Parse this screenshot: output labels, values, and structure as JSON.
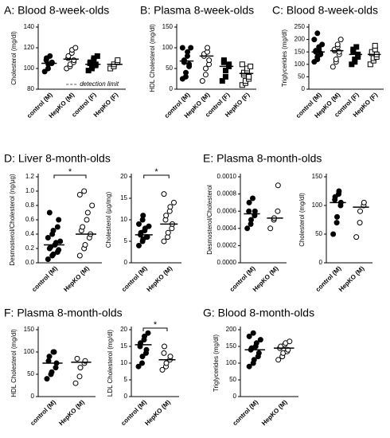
{
  "chart_data": [
    {
      "type": "strip",
      "title": "A: Blood 8-week-olds",
      "ylabel": "Cholesterol (mg/dl)",
      "annotation": "detection limit",
      "categories": [
        "control (M)",
        "HepKO (M)",
        "control (F)",
        "HepKO (F)"
      ],
      "markers": [
        "circle",
        "open-circle",
        "square",
        "open-square"
      ],
      "color": "#000000",
      "values": [
        [
          97,
          100,
          104,
          105,
          106,
          108,
          110,
          112
        ],
        [
          100,
          102,
          104,
          106,
          108,
          110,
          112,
          115,
          118,
          120
        ],
        [
          98,
          100,
          102,
          103,
          104,
          105,
          106,
          108,
          110,
          112
        ],
        [
          100,
          102,
          104,
          106,
          108
        ]
      ],
      "medians": [
        105,
        109,
        104,
        104
      ],
      "ylim": [
        80,
        140
      ],
      "yticks": [
        80,
        100,
        120,
        140
      ]
    },
    {
      "type": "strip",
      "title": "B: Plasma 8-week-olds",
      "ylabel": "HDL Cholesterol (mg/dl)",
      "categories": [
        "control (M)",
        "HepKO (M)",
        "control (F)",
        "HepKO (F)"
      ],
      "markers": [
        "circle",
        "open-circle",
        "square",
        "open-square"
      ],
      "color": "#000000",
      "values": [
        [
          25,
          30,
          40,
          55,
          60,
          65,
          70,
          80,
          90,
          100,
          100
        ],
        [
          20,
          35,
          50,
          60,
          70,
          80,
          85,
          90,
          100
        ],
        [
          20,
          30,
          45,
          55,
          60,
          65,
          70
        ],
        [
          10,
          15,
          20,
          25,
          30,
          35,
          40,
          45,
          50,
          55,
          60
        ]
      ],
      "medians": [
        68,
        80,
        55,
        38
      ],
      "ylim": [
        0,
        150
      ],
      "yticks": [
        0,
        50,
        100,
        150
      ]
    },
    {
      "type": "strip",
      "title": "C: Blood 8-week-olds",
      "ylabel": "Triglycerides (mg/dl)",
      "categories": [
        "control (M)",
        "HepKO (M)",
        "control (F)",
        "HepKO (F)"
      ],
      "markers": [
        "circle",
        "open-circle",
        "square",
        "open-square"
      ],
      "color": "#000000",
      "values": [
        [
          110,
          120,
          130,
          140,
          145,
          150,
          155,
          160,
          170,
          180,
          200,
          225
        ],
        [
          90,
          110,
          120,
          140,
          150,
          155,
          160,
          170,
          180,
          200
        ],
        [
          100,
          110,
          120,
          130,
          140,
          150,
          160,
          170
        ],
        [
          100,
          115,
          125,
          130,
          140,
          145,
          150,
          160,
          175
        ]
      ],
      "medians": [
        150,
        155,
        140,
        140
      ],
      "ylim": [
        0,
        250
      ],
      "yticks": [
        0,
        50,
        100,
        150,
        200,
        250
      ]
    },
    {
      "type": "strip",
      "title": "D: Liver 8-month-olds",
      "ylabel": "Desmosterol/Cholesterol (ng/µg)",
      "significance": "*",
      "categories": [
        "control (M)",
        "HepKO (M)"
      ],
      "markers": [
        "circle",
        "open-circle"
      ],
      "color": "#000000",
      "values": [
        [
          0.05,
          0.1,
          0.12,
          0.15,
          0.18,
          0.2,
          0.22,
          0.25,
          0.28,
          0.3,
          0.35,
          0.4,
          0.45,
          0.5,
          0.6,
          0.7
        ],
        [
          0.1,
          0.2,
          0.25,
          0.35,
          0.4,
          0.45,
          0.5,
          0.6,
          0.7,
          0.8,
          0.95,
          1.0
        ]
      ],
      "medians": [
        0.25,
        0.4
      ],
      "ylim": [
        0,
        1.2
      ],
      "yticks": [
        {
          "value": 0,
          "label": "0.0"
        },
        0.2,
        0.4,
        0.6,
        0.8,
        {
          "value": 1,
          "label": "1.0"
        },
        1.2
      ]
    },
    {
      "type": "strip",
      "ylabel": "Cholesterol (µg/mg)",
      "significance": "*",
      "categories": [
        "control (M)",
        "HepKO (M)"
      ],
      "markers": [
        "circle",
        "open-circle"
      ],
      "color": "#000000",
      "values": [
        [
          4,
          5,
          5.5,
          6,
          6,
          6.5,
          7,
          7.5,
          8,
          8.5,
          9,
          10,
          11
        ],
        [
          5,
          6,
          7,
          8,
          9,
          10,
          11,
          12,
          13,
          14,
          16
        ]
      ],
      "medians": [
        6.5,
        9
      ],
      "ylim": [
        0,
        20
      ],
      "yticks": [
        0,
        5,
        10,
        15,
        20
      ]
    },
    {
      "type": "strip",
      "title": "E: Plasma 8-month-olds",
      "ylabel": "Desmosterol/Cholesterol",
      "categories": [
        "control (M)",
        "HepKO (M)"
      ],
      "markers": [
        "circle",
        "open-circle"
      ],
      "color": "#000000",
      "values": [
        [
          0.0004,
          0.00045,
          0.0005,
          0.00055,
          0.0006,
          0.0006,
          0.0007,
          0.00075
        ],
        [
          0.0004,
          0.0005,
          0.00052,
          0.0006,
          0.0009
        ]
      ],
      "medians": [
        0.00057,
        0.00052
      ],
      "ylim": [
        0,
        0.001
      ],
      "yticks": [
        {
          "value": 0,
          "label": "0.0000"
        },
        {
          "value": 0.0002,
          "label": "0.0002"
        },
        {
          "value": 0.0004,
          "label": "0.0004"
        },
        {
          "value": 0.0006,
          "label": "0.0006"
        },
        {
          "value": 0.0008,
          "label": "0.0008"
        },
        {
          "value": 0.001,
          "label": "0.0010"
        }
      ]
    },
    {
      "type": "strip",
      "ylabel": "Cholesterol (mg/dl)",
      "categories": [
        "control (M)",
        "HepKO (M)"
      ],
      "markers": [
        "circle",
        "open-circle"
      ],
      "color": "#000000",
      "values": [
        [
          50,
          70,
          80,
          100,
          105,
          110,
          115,
          120,
          125
        ],
        [
          45,
          70,
          90,
          100,
          105
        ]
      ],
      "medians": [
        105,
        97
      ],
      "ylim": [
        0,
        150
      ],
      "yticks": [
        0,
        50,
        100,
        150
      ]
    },
    {
      "type": "strip",
      "title": "F: Plasma 8-month-olds",
      "ylabel": "HDL Cholesterol (mg/dl)",
      "categories": [
        "control (M)",
        "HepKO (M)"
      ],
      "markers": [
        "circle",
        "open-circle"
      ],
      "color": "#000000",
      "values": [
        [
          40,
          50,
          55,
          65,
          75,
          80,
          90,
          100,
          100
        ],
        [
          30,
          45,
          65,
          75,
          80,
          85
        ]
      ],
      "medians": [
        75,
        77
      ],
      "ylim": [
        0,
        150
      ],
      "yticks": [
        0,
        50,
        100,
        150
      ]
    },
    {
      "type": "strip",
      "ylabel": "LDL Cholesterol (mg/dl)",
      "significance": "*",
      "categories": [
        "control (M)",
        "HepKO (M)"
      ],
      "markers": [
        "circle",
        "open-circle"
      ],
      "color": "#000000",
      "values": [
        [
          9,
          10,
          12,
          13,
          14,
          15,
          16,
          17,
          18,
          19
        ],
        [
          8,
          9,
          10,
          11,
          12,
          13,
          15
        ]
      ],
      "medians": [
        15.5,
        11
      ],
      "ylim": [
        0,
        20
      ],
      "yticks": [
        0,
        5,
        10,
        15,
        20
      ]
    },
    {
      "type": "strip",
      "title": "G: Blood 8-month-olds",
      "ylabel": "Triglycerides (mg/dl)",
      "categories": [
        "control (M)",
        "HepKO (M)"
      ],
      "markers": [
        "circle",
        "open-circle"
      ],
      "color": "#000000",
      "values": [
        [
          90,
          100,
          110,
          120,
          130,
          140,
          145,
          150,
          160,
          170,
          180,
          190
        ],
        [
          110,
          120,
          130,
          135,
          140,
          145,
          150,
          155,
          160,
          165
        ]
      ],
      "medians": [
        140,
        145
      ],
      "ylim": [
        0,
        200
      ],
      "yticks": [
        0,
        50,
        100,
        150,
        200
      ]
    }
  ]
}
